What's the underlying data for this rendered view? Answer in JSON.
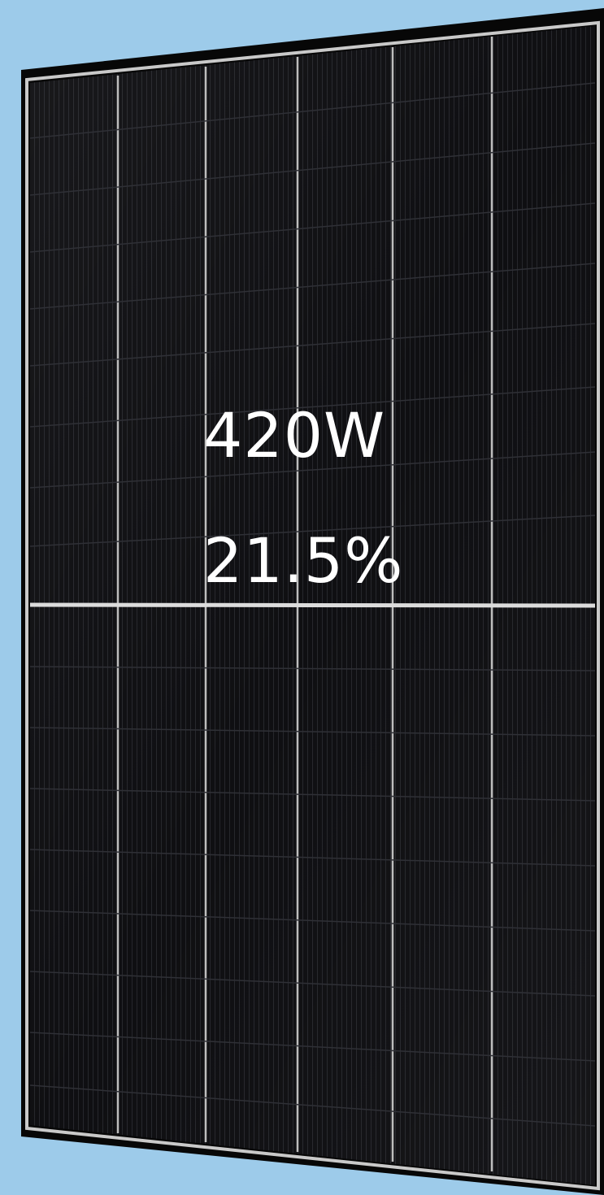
{
  "panel": {
    "power_rating": "420W",
    "efficiency": "21.5%"
  },
  "colors": {
    "background": "#9dcbea",
    "frame": "#0a0a0a",
    "cell": "#0e0e10",
    "busbar": "#d8d8d8",
    "text": "#ffffff"
  }
}
